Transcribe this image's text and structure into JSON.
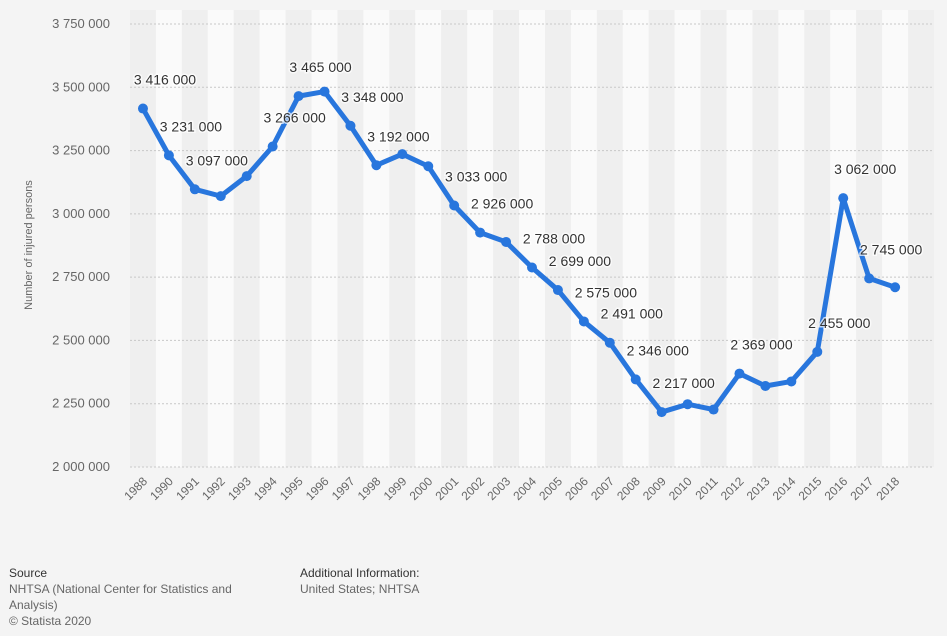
{
  "chart_data": {
    "type": "line",
    "title": "",
    "xlabel": "",
    "ylabel": "Number of injured persons",
    "ylim": [
      2000000,
      3750000
    ],
    "yticks": [
      2000000,
      2250000,
      2500000,
      2750000,
      3000000,
      3250000,
      3500000,
      3750000
    ],
    "ytick_labels": [
      "2 000 000",
      "2 250 000",
      "2 500 000",
      "2 750 000",
      "3 000 000",
      "3 250 000",
      "3 500 000",
      "3 750 000"
    ],
    "grid": true,
    "line_color": "#2876dd",
    "categories": [
      "1988",
      "1990",
      "1991",
      "1992",
      "1993",
      "1994",
      "1995",
      "1996",
      "1997",
      "1998",
      "1999",
      "2000",
      "2001",
      "2002",
      "2003",
      "2004",
      "2005",
      "2006",
      "2007",
      "2008",
      "2009",
      "2010",
      "2011",
      "2012",
      "2013",
      "2014",
      "2015",
      "2016",
      "2017",
      "2018"
    ],
    "values": [
      3416000,
      3231000,
      3097000,
      3070000,
      3149000,
      3266000,
      3465000,
      3483000,
      3348000,
      3192000,
      3236000,
      3188000,
      3033000,
      2926000,
      2889000,
      2788000,
      2699000,
      2575000,
      2491000,
      2346000,
      2217000,
      2248000,
      2227000,
      2369000,
      2320000,
      2338000,
      2455000,
      3062000,
      2745000,
      2710000
    ],
    "data_labels": [
      "3 416 000",
      "3 231 000",
      "3 097 000",
      "",
      "",
      "3 266 000",
      "3 465 000",
      "",
      "3 348 000",
      "3 192 000",
      "",
      "",
      "3 033 000",
      "2 926 000",
      "",
      "2 788 000",
      "2 699 000",
      "2 575 000",
      "2 491 000",
      "2 346 000",
      "2 217 000",
      "",
      "",
      "2 369 000",
      "",
      "",
      "2 455 000",
      "3 062 000",
      "2 745 000",
      ""
    ]
  },
  "footer": {
    "source_heading": "Source",
    "source_text_1": "NHTSA (National Center for Statistics and",
    "source_text_2": "Analysis)",
    "copyright": "© Statista 2020",
    "additional_heading": "Additional Information:",
    "additional_text": "United States; NHTSA"
  }
}
